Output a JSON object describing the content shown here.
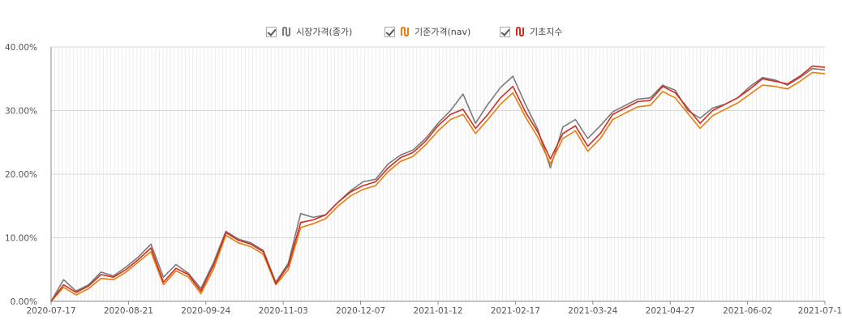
{
  "chart_data": {
    "type": "line",
    "title": "",
    "xlabel": "",
    "ylabel": "",
    "ylim": [
      0,
      40
    ],
    "yticks": [
      "0.00%",
      "10.00%",
      "20.00%",
      "30.00%",
      "40.00%"
    ],
    "xticks": [
      "2020-07-17",
      "2020-08-21",
      "2020-09-24",
      "2020-11-03",
      "2020-12-07",
      "2021-01-12",
      "2021-02-17",
      "2021-03-24",
      "2021-04-27",
      "2021-06-02",
      "2021-07-1"
    ],
    "grid": true,
    "legend_position": "top-center",
    "x": [
      "2020-07-17",
      "2020-07-23",
      "2020-07-29",
      "2020-08-04",
      "2020-08-10",
      "2020-08-14",
      "2020-08-21",
      "2020-08-27",
      "2020-09-02",
      "2020-09-08",
      "2020-09-14",
      "2020-09-18",
      "2020-09-24",
      "2020-09-30",
      "2020-10-08",
      "2020-10-14",
      "2020-10-20",
      "2020-10-26",
      "2020-10-30",
      "2020-11-03",
      "2020-11-09",
      "2020-11-13",
      "2020-11-19",
      "2020-11-25",
      "2020-12-01",
      "2020-12-07",
      "2020-12-11",
      "2020-12-17",
      "2020-12-23",
      "2020-12-30",
      "2021-01-06",
      "2021-01-12",
      "2021-01-18",
      "2021-01-22",
      "2021-01-28",
      "2021-02-03",
      "2021-02-09",
      "2021-02-17",
      "2021-02-23",
      "2021-03-01",
      "2021-03-05",
      "2021-03-11",
      "2021-03-17",
      "2021-03-24",
      "2021-03-30",
      "2021-04-05",
      "2021-04-09",
      "2021-04-15",
      "2021-04-21",
      "2021-04-27",
      "2021-05-03",
      "2021-05-07",
      "2021-05-13",
      "2021-05-20",
      "2021-05-27",
      "2021-06-02",
      "2021-06-08",
      "2021-06-14",
      "2021-06-18",
      "2021-06-24",
      "2021-06-30",
      "2021-07-06",
      "2021-07-12"
    ],
    "series": [
      {
        "name": "시장가격(종가)",
        "color": "#7a7a7a",
        "values": [
          0.0,
          3.4,
          1.6,
          2.6,
          4.6,
          4.0,
          5.4,
          7.0,
          9.0,
          3.8,
          5.8,
          4.4,
          2.0,
          6.0,
          11.0,
          9.8,
          9.2,
          8.0,
          3.0,
          6.0,
          13.8,
          13.2,
          13.6,
          15.6,
          17.4,
          18.8,
          19.2,
          21.6,
          23.0,
          23.8,
          25.6,
          28.0,
          30.0,
          32.6,
          28.0,
          31.0,
          33.6,
          35.4,
          31.0,
          27.0,
          21.0,
          27.4,
          28.6,
          25.6,
          27.6,
          29.8,
          30.8,
          31.8,
          32.0,
          34.0,
          33.2,
          30.0,
          28.8,
          30.4,
          31.0,
          32.0,
          33.8,
          35.2,
          34.8,
          34.0,
          35.2,
          36.6,
          36.4
        ]
      },
      {
        "name": "기준가격(nav)",
        "color": "#e87d0d",
        "values": [
          0.0,
          2.2,
          1.0,
          2.0,
          3.6,
          3.4,
          4.6,
          6.2,
          7.8,
          2.6,
          4.8,
          3.8,
          1.2,
          5.0,
          10.4,
          9.2,
          8.6,
          7.4,
          2.6,
          5.0,
          11.6,
          12.2,
          13.0,
          15.0,
          16.6,
          17.6,
          18.2,
          20.4,
          22.0,
          22.8,
          24.6,
          26.8,
          28.6,
          29.4,
          26.4,
          28.6,
          31.0,
          32.8,
          29.0,
          25.8,
          21.6,
          25.6,
          26.8,
          23.6,
          25.6,
          28.6,
          29.6,
          30.6,
          30.8,
          33.0,
          32.0,
          29.6,
          27.2,
          29.2,
          30.2,
          31.2,
          32.6,
          34.0,
          33.8,
          33.4,
          34.6,
          36.0,
          35.8
        ]
      },
      {
        "name": "기초지수",
        "color": "#d22e1e",
        "values": [
          0.0,
          2.6,
          1.4,
          2.4,
          4.2,
          3.8,
          5.0,
          6.6,
          8.4,
          3.0,
          5.2,
          4.2,
          1.6,
          5.6,
          10.8,
          9.6,
          9.0,
          7.8,
          2.8,
          5.6,
          12.4,
          12.8,
          13.6,
          15.6,
          17.2,
          18.2,
          18.8,
          21.0,
          22.6,
          23.4,
          25.2,
          27.6,
          29.4,
          30.2,
          27.2,
          29.4,
          32.0,
          33.8,
          29.8,
          26.6,
          22.4,
          26.4,
          27.6,
          24.4,
          26.4,
          29.4,
          30.4,
          31.4,
          31.6,
          33.8,
          32.8,
          30.4,
          28.0,
          30.0,
          31.0,
          32.0,
          33.4,
          35.0,
          34.6,
          34.2,
          35.4,
          37.0,
          36.8
        ]
      }
    ]
  },
  "legend": [
    {
      "label": "시장가격(종가)",
      "color": "#7a7a7a",
      "checked": true
    },
    {
      "label": "기준가격(nav)",
      "color": "#e87d0d",
      "checked": true
    },
    {
      "label": "기초지수",
      "color": "#d22e1e",
      "checked": true
    }
  ]
}
